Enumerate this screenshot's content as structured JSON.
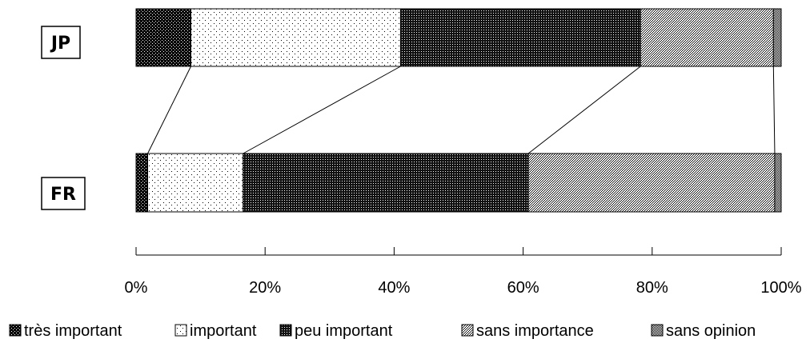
{
  "chart_data": {
    "type": "bar",
    "orientation": "horizontal",
    "stacked": true,
    "percent": true,
    "categories": [
      "JP",
      "FR"
    ],
    "series": [
      {
        "name": "très important",
        "values": [
          8.5,
          1.8
        ]
      },
      {
        "name": "important",
        "values": [
          32.5,
          14.8
        ]
      },
      {
        "name": "peu important",
        "values": [
          37.2,
          44.2
        ]
      },
      {
        "name": "sans importance",
        "values": [
          20.6,
          38.2
        ]
      },
      {
        "name": "sans opinion",
        "values": [
          1.2,
          1.0
        ]
      }
    ],
    "xlim": [
      0,
      100
    ],
    "xticks": [
      "0%",
      "20%",
      "40%",
      "60%",
      "80%",
      "100%"
    ],
    "title": "",
    "xlabel": "",
    "ylabel": "",
    "legend_position": "bottom",
    "grid": false
  }
}
